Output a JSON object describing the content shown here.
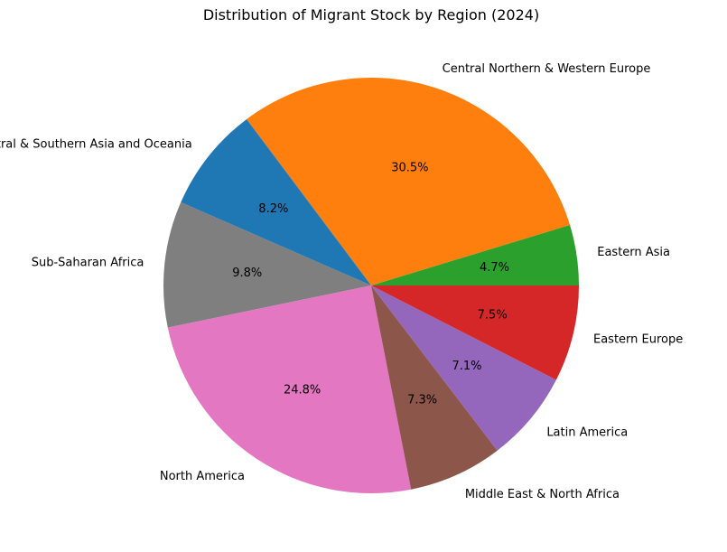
{
  "chart_data": {
    "type": "pie",
    "title": "Distribution of Migrant Stock by Region (2024)",
    "start_angle_deg": 0,
    "direction": "counterclockwise",
    "slices": [
      {
        "label": "Eastern Asia",
        "value": 4.7,
        "pct_label": "4.7%",
        "color": "#2ca02c"
      },
      {
        "label": "Central Northern & Western Europe",
        "value": 30.5,
        "pct_label": "30.5%",
        "color": "#ff7f0e"
      },
      {
        "label": "Central & Southern Asia and Oceania",
        "value": 8.2,
        "pct_label": "8.2%",
        "color": "#1f77b4"
      },
      {
        "label": "Sub-Saharan Africa",
        "value": 9.8,
        "pct_label": "9.8%",
        "color": "#7f7f7f"
      },
      {
        "label": "North America",
        "value": 24.8,
        "pct_label": "24.8%",
        "color": "#e377c2"
      },
      {
        "label": "Middle East & North Africa",
        "value": 7.3,
        "pct_label": "7.3%",
        "color": "#8c564b"
      },
      {
        "label": "Latin America",
        "value": 7.1,
        "pct_label": "7.1%",
        "color": "#9467bd"
      },
      {
        "label": "Eastern Europe",
        "value": 7.5,
        "pct_label": "7.5%",
        "color": "#d62728"
      }
    ]
  }
}
